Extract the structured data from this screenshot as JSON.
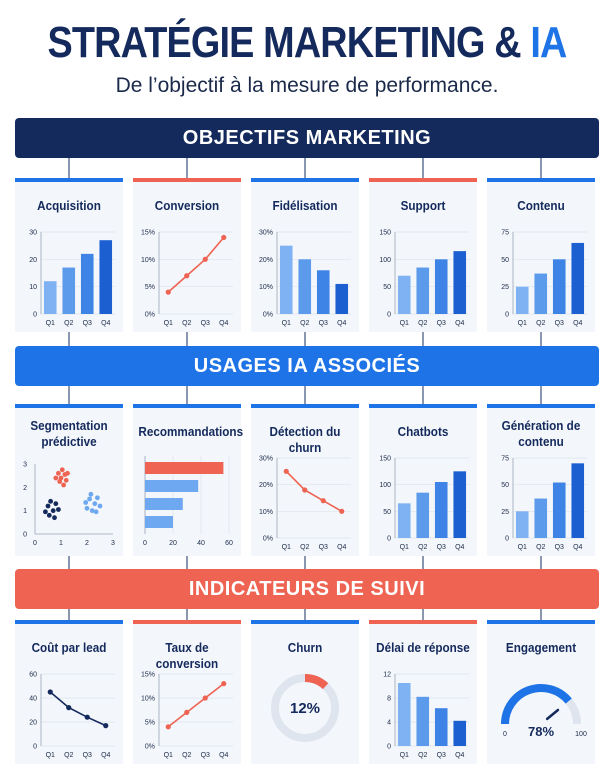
{
  "header": {
    "title_main": "STRATÉGIE MARKETING & ",
    "title_accent": "IA",
    "subtitle": "De l’objectif à la mesure de performance."
  },
  "sections": [
    {
      "label": "OBJECTIFS MARKETING"
    },
    {
      "label": "USAGES IA ASSOCIÉS"
    },
    {
      "label": "INDICATEURS DE SUIVI"
    }
  ],
  "colors": {
    "navy": "#142a5c",
    "blue": "#1e74e6",
    "light_blue": "#6ea8f0",
    "red": "#ee6352",
    "card_bg": "#f3f6fa"
  },
  "chart_data": [
    {
      "id": "acquisition",
      "title": "Acquisition",
      "type": "bar",
      "categories": [
        "Q1",
        "Q2",
        "Q3",
        "Q4"
      ],
      "values": [
        12,
        17,
        22,
        27
      ],
      "yticks": [
        "0",
        "10",
        "20",
        "30"
      ],
      "ylim": [
        0,
        30
      ]
    },
    {
      "id": "conversion",
      "title": "Conversion",
      "type": "line",
      "categories": [
        "Q1",
        "Q2",
        "Q3",
        "Q4"
      ],
      "values": [
        4,
        7,
        10,
        14
      ],
      "yticks": [
        "0%",
        "5%",
        "10%",
        "15%"
      ],
      "ylim": [
        0,
        15
      ]
    },
    {
      "id": "fidelisation",
      "title": "Fidélisation",
      "type": "bar",
      "categories": [
        "Q1",
        "Q2",
        "Q3",
        "Q4"
      ],
      "values": [
        25,
        20,
        16,
        11
      ],
      "yticks": [
        "0%",
        "10%",
        "20%",
        "30%"
      ],
      "ylim": [
        0,
        30
      ]
    },
    {
      "id": "support",
      "title": "Support",
      "type": "bar",
      "categories": [
        "Q1",
        "Q2",
        "Q3",
        "Q4"
      ],
      "values": [
        70,
        85,
        100,
        115
      ],
      "yticks": [
        "0",
        "50",
        "100",
        "150"
      ],
      "ylim": [
        0,
        150
      ]
    },
    {
      "id": "contenu",
      "title": "Contenu",
      "type": "bar",
      "categories": [
        "Q1",
        "Q2",
        "Q3",
        "Q4"
      ],
      "values": [
        25,
        37,
        50,
        65
      ],
      "yticks": [
        "0",
        "25",
        "50",
        "75"
      ],
      "ylim": [
        0,
        75
      ]
    },
    {
      "id": "segmentation",
      "title": "Segmentation prédictive",
      "type": "scatter",
      "xticks": [
        "0",
        "1",
        "2",
        "3"
      ],
      "yticks": [
        "0",
        "1",
        "2",
        "3"
      ],
      "xlim": [
        0,
        3
      ],
      "ylim": [
        0,
        3
      ],
      "clusters": [
        {
          "color": "#ee6352",
          "points": [
            [
              0.9,
              2.6
            ],
            [
              1.0,
              2.4
            ],
            [
              1.15,
              2.55
            ],
            [
              0.95,
              2.25
            ],
            [
              1.2,
              2.3
            ],
            [
              1.05,
              2.75
            ],
            [
              0.8,
              2.4
            ],
            [
              1.25,
              2.6
            ],
            [
              1.1,
              2.1
            ]
          ]
        },
        {
          "color": "#142a5c",
          "points": [
            [
              0.5,
              1.2
            ],
            [
              0.7,
              1.0
            ],
            [
              0.55,
              0.8
            ],
            [
              0.8,
              1.3
            ],
            [
              0.4,
              0.95
            ],
            [
              0.75,
              0.7
            ],
            [
              0.6,
              1.4
            ],
            [
              0.9,
              1.05
            ]
          ]
        },
        {
          "color": "#6ea8f0",
          "points": [
            [
              2.1,
              1.5
            ],
            [
              2.3,
              1.3
            ],
            [
              2.0,
              1.1
            ],
            [
              2.4,
              1.55
            ],
            [
              2.2,
              1.0
            ],
            [
              2.5,
              1.2
            ],
            [
              1.95,
              1.35
            ],
            [
              2.35,
              0.95
            ],
            [
              2.15,
              1.7
            ]
          ]
        }
      ]
    },
    {
      "id": "recommandations",
      "title": "Recommandations",
      "type": "barh",
      "values": [
        56,
        38,
        27,
        20
      ],
      "xticks": [
        "0",
        "20",
        "40",
        "60"
      ],
      "xlim": [
        0,
        60
      ],
      "bar_colors": [
        "#ee6352",
        "#6ea8f0",
        "#6ea8f0",
        "#6ea8f0"
      ]
    },
    {
      "id": "churn_detection",
      "title": "Détection du churn",
      "type": "line",
      "categories": [
        "Q1",
        "Q2",
        "Q3",
        "Q4"
      ],
      "values": [
        25,
        18,
        14,
        10
      ],
      "yticks": [
        "0%",
        "10%",
        "20%",
        "30%"
      ],
      "ylim": [
        0,
        30
      ]
    },
    {
      "id": "chatbots",
      "title": "Chatbots",
      "type": "bar",
      "categories": [
        "Q1",
        "Q2",
        "Q3",
        "Q4"
      ],
      "values": [
        65,
        85,
        105,
        125
      ],
      "yticks": [
        "0",
        "50",
        "100",
        "150"
      ],
      "ylim": [
        0,
        150
      ]
    },
    {
      "id": "generation",
      "title": "Génération de contenu",
      "type": "bar",
      "categories": [
        "Q1",
        "Q2",
        "Q3",
        "Q4"
      ],
      "values": [
        25,
        37,
        52,
        70
      ],
      "yticks": [
        "0",
        "25",
        "50",
        "75"
      ],
      "ylim": [
        0,
        75
      ]
    },
    {
      "id": "cout_lead",
      "title": "Coût par lead",
      "type": "line",
      "categories": [
        "Q1",
        "Q2",
        "Q3",
        "Q4"
      ],
      "values": [
        45,
        32,
        24,
        17
      ],
      "yticks": [
        "0",
        "20",
        "40",
        "60"
      ],
      "ylim": [
        0,
        60
      ]
    },
    {
      "id": "taux_conversion",
      "title": "Taux de conversion",
      "type": "line",
      "categories": [
        "Q1",
        "Q2",
        "Q3",
        "Q4"
      ],
      "values": [
        4,
        7,
        10,
        13
      ],
      "yticks": [
        "0%",
        "5%",
        "10%",
        "15%"
      ],
      "ylim": [
        0,
        15
      ]
    },
    {
      "id": "churn",
      "title": "Churn",
      "type": "donut",
      "value": 12,
      "label": "12%"
    },
    {
      "id": "delai",
      "title": "Délai de réponse",
      "type": "bar",
      "categories": [
        "Q1",
        "Q2",
        "Q3",
        "Q4"
      ],
      "values": [
        10.5,
        8.2,
        6.3,
        4.2
      ],
      "yticks": [
        "0",
        "4",
        "8",
        "12"
      ],
      "ylim": [
        0,
        12
      ]
    },
    {
      "id": "engagement",
      "title": "Engagement",
      "type": "gauge",
      "value": 78,
      "label": "78%",
      "min_label": "0",
      "max_label": "100",
      "range": [
        0,
        100
      ]
    }
  ]
}
